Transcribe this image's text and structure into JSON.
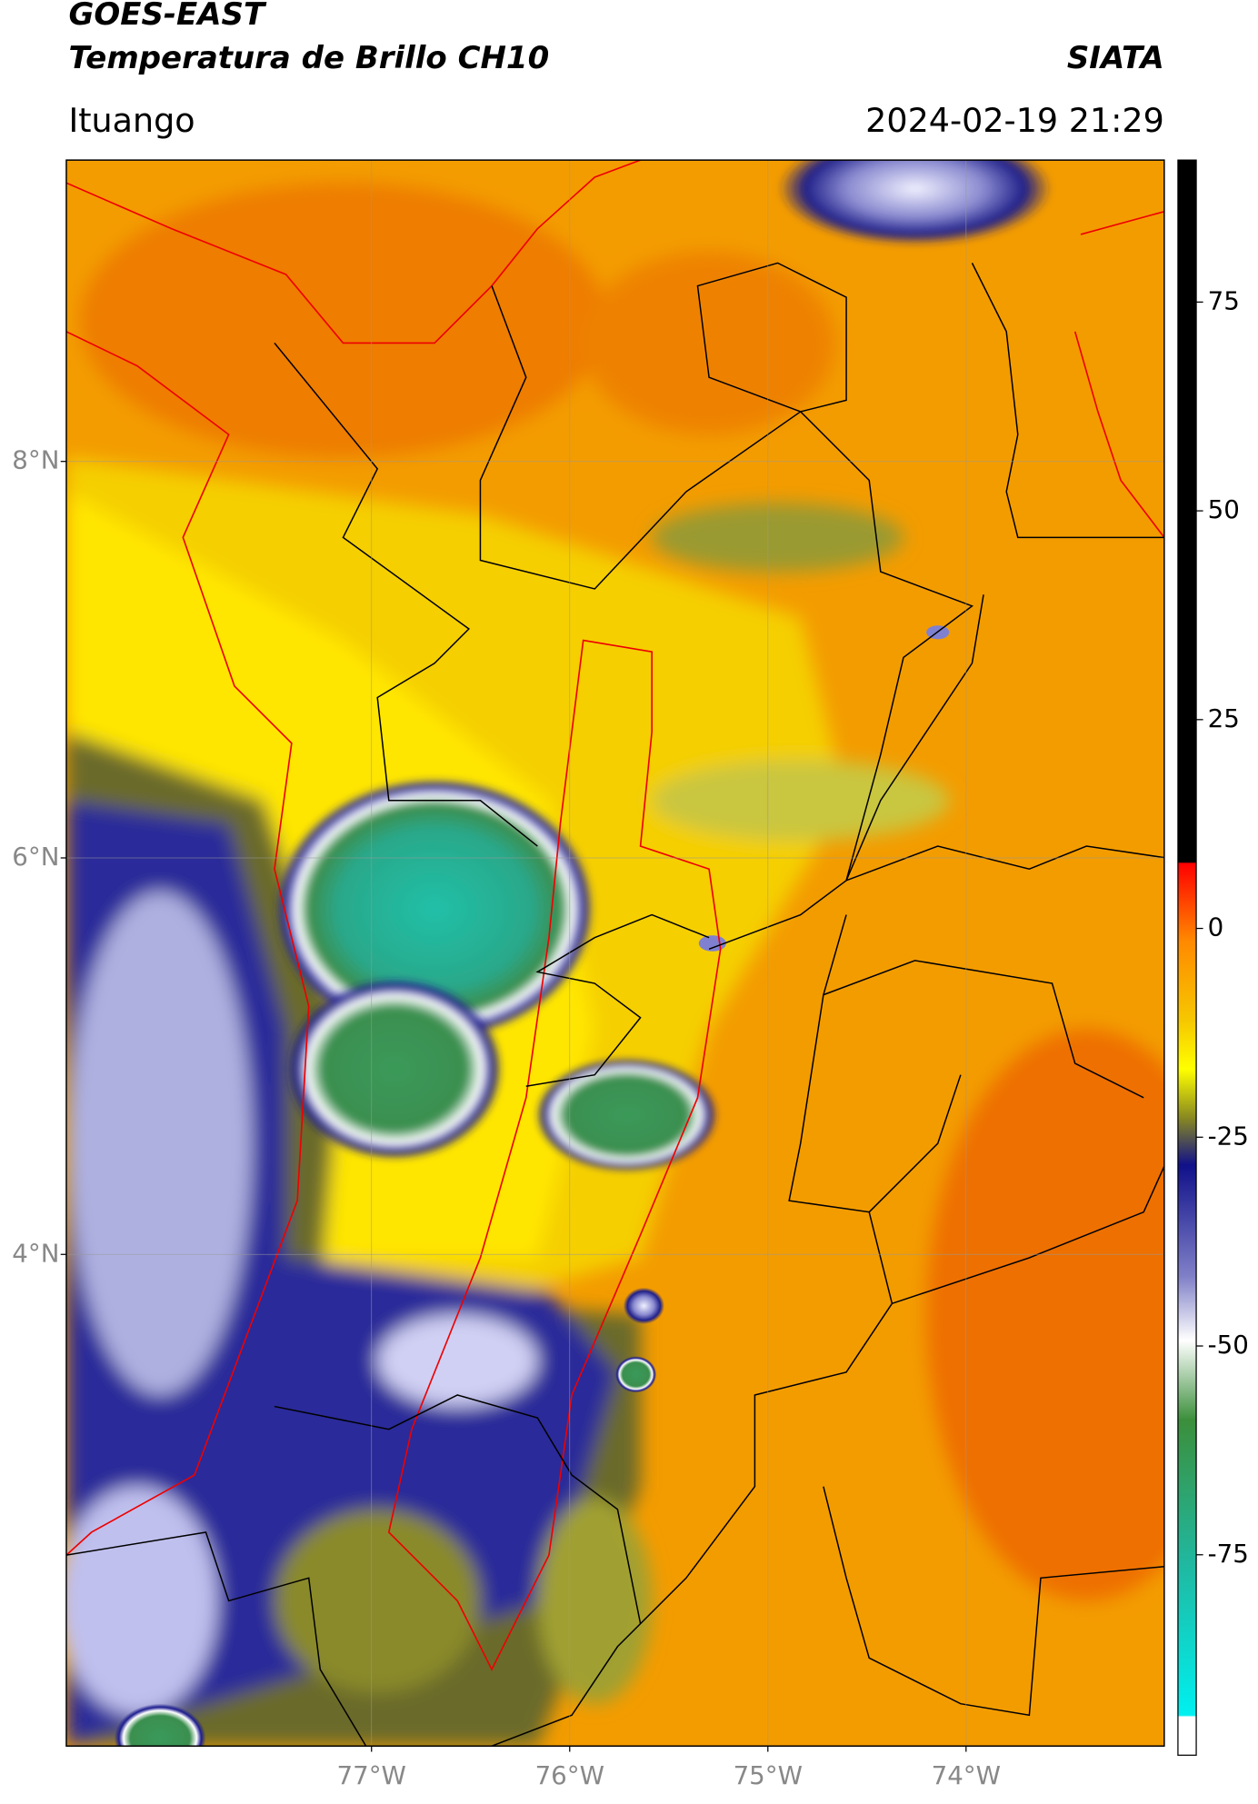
{
  "header": {
    "title": "GOES-EAST",
    "subtitle": "Temperatura de Brillo CH10",
    "brand": "SIATA",
    "location": "Ituango",
    "datetime": "2024-02-19 21:29"
  },
  "map": {
    "xlim": [
      -78.54,
      -73.0
    ],
    "ylim": [
      1.52,
      9.52
    ],
    "xticks": [
      {
        "value": -77,
        "label": "77°W"
      },
      {
        "value": -76,
        "label": "76°W"
      },
      {
        "value": -75,
        "label": "75°W"
      },
      {
        "value": -74,
        "label": "74°W"
      }
    ],
    "yticks": [
      {
        "value": 8,
        "label": "8°N"
      },
      {
        "value": 6,
        "label": "6°N"
      },
      {
        "value": 4,
        "label": "4°N"
      }
    ],
    "grid": true
  },
  "colorbar": {
    "lim": [
      -99,
      92
    ],
    "ticks": [
      75,
      50,
      25,
      0,
      -25,
      -50,
      -75
    ]
  }
}
